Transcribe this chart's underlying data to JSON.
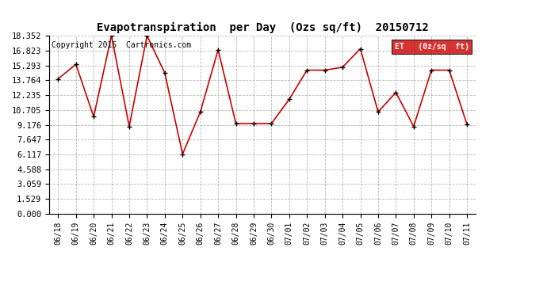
{
  "title": "Evapotranspiration  per Day  (Ozs sq/ft)  20150712",
  "copyright_text": "Copyright 2015  Cartronics.com",
  "legend_bg": "#cc0000",
  "legend_text_color": "#ffffff",
  "x_labels": [
    "06/18",
    "06/19",
    "06/20",
    "06/21",
    "06/22",
    "06/23",
    "06/24",
    "06/25",
    "06/26",
    "06/27",
    "06/28",
    "06/29",
    "06/30",
    "07/01",
    "07/02",
    "07/03",
    "07/04",
    "07/05",
    "07/06",
    "07/07",
    "07/08",
    "07/09",
    "07/10",
    "07/11"
  ],
  "y_values": [
    13.9,
    15.4,
    10.0,
    18.35,
    9.0,
    18.35,
    14.5,
    6.15,
    10.5,
    16.9,
    9.3,
    9.3,
    9.3,
    11.8,
    14.8,
    14.8,
    15.1,
    17.0,
    10.5,
    12.5,
    9.0,
    14.8,
    14.8,
    9.2
  ],
  "yticks": [
    0.0,
    1.529,
    3.059,
    4.588,
    6.117,
    7.647,
    9.176,
    10.705,
    12.235,
    13.764,
    15.293,
    16.823,
    18.352
  ],
  "ylim": [
    0,
    18.352
  ],
  "line_color": "#cc0000",
  "marker_color": "#000000",
  "bg_color": "#ffffff",
  "grid_color": "#999999",
  "title_fontsize": 10,
  "copyright_fontsize": 7,
  "tick_fontsize": 7,
  "ytick_fontsize": 7.5
}
